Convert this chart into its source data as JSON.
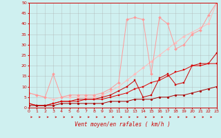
{
  "xlabel": "Vent moyen/en rafales ( km/h )",
  "xlim": [
    0,
    23
  ],
  "ylim": [
    0,
    50
  ],
  "xtick_labels": [
    "0",
    "1",
    "2",
    "3",
    "4",
    "5",
    "6",
    "7",
    "8",
    "9",
    "10",
    "11",
    "12",
    "13",
    "14",
    "15",
    "16",
    "17",
    "18",
    "19",
    "20",
    "21",
    "22",
    "23"
  ],
  "ytick_labels": [
    "0",
    "5",
    "10",
    "15",
    "20",
    "25",
    "30",
    "35",
    "40",
    "45",
    "50"
  ],
  "bg_color": "#cff0f0",
  "grid_color": "#aaaaaa",
  "line1_x": [
    0,
    1,
    2,
    3,
    4,
    5,
    6,
    7,
    8,
    9,
    10,
    11,
    12,
    13,
    14,
    15,
    16,
    17,
    18,
    19,
    20,
    21,
    22,
    23
  ],
  "line1_y": [
    7,
    6,
    5,
    4,
    5,
    5,
    5,
    5,
    5,
    6,
    8,
    10,
    13,
    16,
    19,
    22,
    25,
    28,
    31,
    34,
    36,
    38,
    40,
    50
  ],
  "line1_color": "#ffbbbb",
  "line2_x": [
    0,
    1,
    2,
    3,
    4,
    5,
    6,
    7,
    8,
    9,
    10,
    11,
    12,
    13,
    14,
    15,
    16,
    17,
    18,
    19,
    20,
    21,
    22,
    23
  ],
  "line2_y": [
    7,
    6,
    5,
    16,
    5,
    6,
    6,
    6,
    6,
    7,
    9,
    12,
    42,
    43,
    42,
    16,
    43,
    40,
    28,
    30,
    35,
    37,
    44,
    50
  ],
  "line2_color": "#ff9999",
  "line3_x": [
    0,
    1,
    2,
    3,
    4,
    5,
    6,
    7,
    8,
    9,
    10,
    11,
    12,
    13,
    14,
    15,
    16,
    17,
    18,
    19,
    20,
    21,
    22,
    23
  ],
  "line3_y": [
    2,
    1,
    1,
    2,
    3,
    3,
    4,
    4,
    4,
    5,
    6,
    8,
    10,
    13,
    5,
    6,
    14,
    16,
    11,
    12,
    20,
    21,
    21,
    26
  ],
  "line3_color": "#cc0000",
  "line4_x": [
    0,
    1,
    2,
    3,
    4,
    5,
    6,
    7,
    8,
    9,
    10,
    11,
    12,
    13,
    14,
    15,
    16,
    17,
    18,
    19,
    20,
    21,
    22,
    23
  ],
  "line4_y": [
    2,
    1,
    1,
    2,
    3,
    3,
    3,
    4,
    4,
    4,
    5,
    6,
    7,
    9,
    10,
    12,
    13,
    15,
    17,
    18,
    20,
    20,
    21,
    21
  ],
  "line4_color": "#dd0000",
  "line5_x": [
    0,
    1,
    2,
    3,
    4,
    5,
    6,
    7,
    8,
    9,
    10,
    11,
    12,
    13,
    14,
    15,
    16,
    17,
    18,
    19,
    20,
    21,
    22,
    23
  ],
  "line5_y": [
    1,
    1,
    1,
    1,
    2,
    2,
    2,
    2,
    2,
    2,
    3,
    3,
    3,
    4,
    4,
    4,
    5,
    5,
    6,
    6,
    7,
    8,
    9,
    10
  ],
  "line5_color": "#aa0000",
  "arrow_color": "#cc0000"
}
